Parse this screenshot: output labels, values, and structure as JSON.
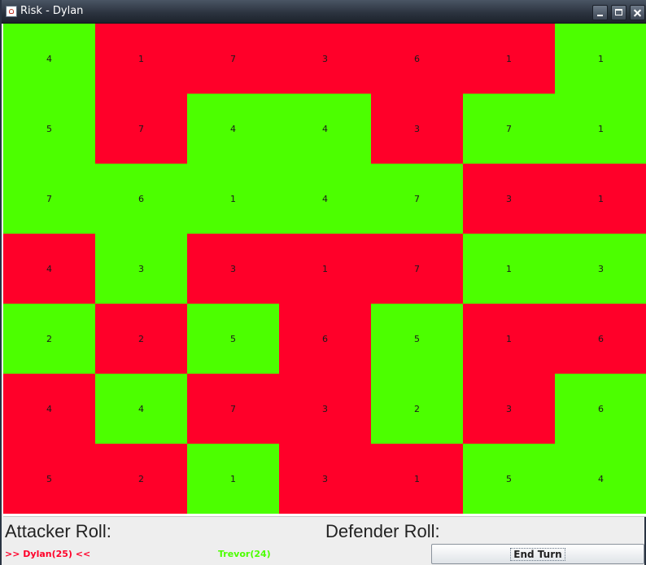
{
  "window": {
    "title": "Risk - Dylan"
  },
  "board": {
    "colors": {
      "green": "#4cff00",
      "red": "#ff0029"
    },
    "rows": [
      [
        {
          "owner": "green",
          "armies": "4"
        },
        {
          "owner": "red",
          "armies": "1"
        },
        {
          "owner": "red",
          "armies": "7"
        },
        {
          "owner": "red",
          "armies": "3"
        },
        {
          "owner": "red",
          "armies": "6"
        },
        {
          "owner": "red",
          "armies": "1"
        },
        {
          "owner": "green",
          "armies": "1"
        }
      ],
      [
        {
          "owner": "green",
          "armies": "5"
        },
        {
          "owner": "red",
          "armies": "7"
        },
        {
          "owner": "green",
          "armies": "4"
        },
        {
          "owner": "green",
          "armies": "4"
        },
        {
          "owner": "red",
          "armies": "3"
        },
        {
          "owner": "green",
          "armies": "7"
        },
        {
          "owner": "green",
          "armies": "1"
        }
      ],
      [
        {
          "owner": "green",
          "armies": "7"
        },
        {
          "owner": "green",
          "armies": "6"
        },
        {
          "owner": "green",
          "armies": "1"
        },
        {
          "owner": "green",
          "armies": "4"
        },
        {
          "owner": "green",
          "armies": "7"
        },
        {
          "owner": "red",
          "armies": "3"
        },
        {
          "owner": "red",
          "armies": "1"
        }
      ],
      [
        {
          "owner": "red",
          "armies": "4"
        },
        {
          "owner": "green",
          "armies": "3"
        },
        {
          "owner": "red",
          "armies": "3"
        },
        {
          "owner": "red",
          "armies": "1"
        },
        {
          "owner": "red",
          "armies": "7"
        },
        {
          "owner": "green",
          "armies": "1"
        },
        {
          "owner": "green",
          "armies": "3"
        }
      ],
      [
        {
          "owner": "green",
          "armies": "2"
        },
        {
          "owner": "red",
          "armies": "2"
        },
        {
          "owner": "green",
          "armies": "5"
        },
        {
          "owner": "red",
          "armies": "6"
        },
        {
          "owner": "green",
          "armies": "5"
        },
        {
          "owner": "red",
          "armies": "1"
        },
        {
          "owner": "red",
          "armies": "6"
        }
      ],
      [
        {
          "owner": "red",
          "armies": "4"
        },
        {
          "owner": "green",
          "armies": "4"
        },
        {
          "owner": "red",
          "armies": "7"
        },
        {
          "owner": "red",
          "armies": "3"
        },
        {
          "owner": "green",
          "armies": "2"
        },
        {
          "owner": "red",
          "armies": "3"
        },
        {
          "owner": "green",
          "armies": "6"
        }
      ],
      [
        {
          "owner": "red",
          "armies": "5"
        },
        {
          "owner": "red",
          "armies": "2"
        },
        {
          "owner": "green",
          "armies": "1"
        },
        {
          "owner": "red",
          "armies": "3"
        },
        {
          "owner": "red",
          "armies": "1"
        },
        {
          "owner": "green",
          "armies": "5"
        },
        {
          "owner": "green",
          "armies": "4"
        }
      ]
    ]
  },
  "status": {
    "attacker_label": "Attacker Roll:",
    "defender_label": "Defender Roll:",
    "player1": "&gt;&gt; Dylan(25) &lt;&lt;",
    "player2": "Trevor(24)",
    "end_turn_label": "End Turn"
  }
}
